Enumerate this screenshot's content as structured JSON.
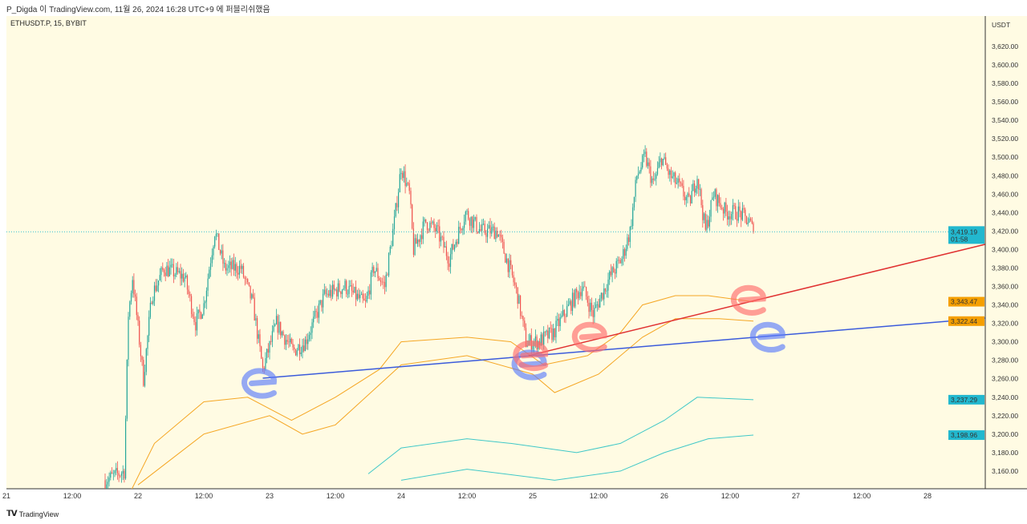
{
  "header": {
    "publish_info": "P_Digda 이 TradingView.com, 11월 26, 2024 16:28 UTC+9 에 퍼블리쉬했음"
  },
  "symbol_info": "ETHUSDT.P, 15, BYBIT",
  "currency": "USDT",
  "footer": {
    "logo_text": "TradingView"
  },
  "colors": {
    "background": "#fffbe3",
    "up": "#26a69a",
    "down": "#ef5350",
    "band_outer": "#f5a623",
    "band_inner": "#3fc8c8",
    "trend_blue": "#3b5bdb",
    "trend_red": "#e03131",
    "last_price": "#22b8cf"
  },
  "chart_data": {
    "type": "candlestick",
    "interval": "15",
    "ylim": [
      3150,
      3630
    ],
    "price_ticks": [
      3160,
      3180,
      3200,
      3220,
      3240,
      3260,
      3280,
      3300,
      3320,
      3340,
      3360,
      3380,
      3400,
      3420,
      3440,
      3460,
      3480,
      3500,
      3520,
      3540,
      3560,
      3580,
      3600,
      3620
    ],
    "price_tick_labels": [
      "3,160.00",
      "3,180.00",
      "3,200.00",
      "3,220.00",
      "3,240.00",
      "3,260.00",
      "3,280.00",
      "3,300.00",
      "3,320.00",
      "3,340.00",
      "3,360.00",
      "3,380.00",
      "3,400.00",
      "3,420.00",
      "3,440.00",
      "3,460.00",
      "3,480.00",
      "3,500.00",
      "3,520.00",
      "3,540.00",
      "3,560.00",
      "3,580.00",
      "3,600.00",
      "3,620.00"
    ],
    "time_ticks": [
      {
        "t": "2024-11-21 00:00",
        "label": "21"
      },
      {
        "t": "2024-11-21 12:00",
        "label": "12:00"
      },
      {
        "t": "2024-11-22 00:00",
        "label": "22"
      },
      {
        "t": "2024-11-22 12:00",
        "label": "12:00"
      },
      {
        "t": "2024-11-23 00:00",
        "label": "23"
      },
      {
        "t": "2024-11-23 12:00",
        "label": "12:00"
      },
      {
        "t": "2024-11-24 00:00",
        "label": "24"
      },
      {
        "t": "2024-11-24 12:00",
        "label": "12:00"
      },
      {
        "t": "2024-11-25 00:00",
        "label": "25"
      },
      {
        "t": "2024-11-25 12:00",
        "label": "12:00"
      },
      {
        "t": "2024-11-26 00:00",
        "label": "26"
      },
      {
        "t": "2024-11-26 12:00",
        "label": "12:00"
      },
      {
        "t": "2024-11-27 00:00",
        "label": "27"
      },
      {
        "t": "2024-11-27 12:00",
        "label": "12:00"
      },
      {
        "t": "2024-11-28 00:00",
        "label": "28"
      }
    ],
    "price_path": [
      [
        "2024-11-21 18:00",
        3150
      ],
      [
        "2024-11-21 21:30",
        3160
      ],
      [
        "2024-11-21 22:15",
        3330
      ],
      [
        "2024-11-21 23:00",
        3370
      ],
      [
        "2024-11-22 01:00",
        3260
      ],
      [
        "2024-11-22 02:30",
        3350
      ],
      [
        "2024-11-22 04:45",
        3380
      ],
      [
        "2024-11-22 08:30",
        3370
      ],
      [
        "2024-11-22 10:30",
        3320
      ],
      [
        "2024-11-22 12:00",
        3340
      ],
      [
        "2024-11-22 14:00",
        3420
      ],
      [
        "2024-11-22 15:45",
        3380
      ],
      [
        "2024-11-22 18:45",
        3380
      ],
      [
        "2024-11-22 21:00",
        3340
      ],
      [
        "2024-11-22 22:45",
        3270
      ],
      [
        "2024-11-23 01:15",
        3320
      ],
      [
        "2024-11-23 04:15",
        3290
      ],
      [
        "2024-11-23 06:30",
        3300
      ],
      [
        "2024-11-23 10:00",
        3350
      ],
      [
        "2024-11-23 13:45",
        3360
      ],
      [
        "2024-11-23 17:30",
        3340
      ],
      [
        "2024-11-23 19:00",
        3380
      ],
      [
        "2024-11-23 21:00",
        3360
      ],
      [
        "2024-11-23 22:45",
        3430
      ],
      [
        "2024-11-24 00:00",
        3490
      ],
      [
        "2024-11-24 01:30",
        3460
      ],
      [
        "2024-11-24 02:15",
        3400
      ],
      [
        "2024-11-24 04:30",
        3430
      ],
      [
        "2024-11-24 06:30",
        3420
      ],
      [
        "2024-11-24 08:45",
        3390
      ],
      [
        "2024-11-24 11:45",
        3440
      ],
      [
        "2024-11-24 14:30",
        3420
      ],
      [
        "2024-11-24 17:30",
        3420
      ],
      [
        "2024-11-24 19:45",
        3380
      ],
      [
        "2024-11-24 21:15",
        3350
      ],
      [
        "2024-11-24 22:45",
        3300
      ],
      [
        "2024-11-25 01:00",
        3300
      ],
      [
        "2024-11-25 03:45",
        3310
      ],
      [
        "2024-11-25 06:45",
        3340
      ],
      [
        "2024-11-25 09:00",
        3360
      ],
      [
        "2024-11-25 11:00",
        3330
      ],
      [
        "2024-11-25 14:00",
        3370
      ],
      [
        "2024-11-25 16:15",
        3390
      ],
      [
        "2024-11-25 17:45",
        3420
      ],
      [
        "2024-11-25 19:00",
        3480
      ],
      [
        "2024-11-25 20:30",
        3500
      ],
      [
        "2024-11-25 22:00",
        3470
      ],
      [
        "2024-11-25 23:30",
        3500
      ],
      [
        "2024-11-26 01:00",
        3480
      ],
      [
        "2024-11-26 02:30",
        3470
      ],
      [
        "2024-11-26 04:30",
        3450
      ],
      [
        "2024-11-26 06:00",
        3480
      ],
      [
        "2024-11-26 07:30",
        3420
      ],
      [
        "2024-11-26 09:00",
        3460
      ],
      [
        "2024-11-26 11:15",
        3440
      ],
      [
        "2024-11-26 13:30",
        3440
      ],
      [
        "2024-11-26 15:30",
        3430
      ],
      [
        "2024-11-26 16:15",
        3419.19
      ]
    ],
    "bands": [
      {
        "role": "outer-upper",
        "color": "#f5a623",
        "points": [
          [
            "2024-11-21 22:00",
            3130
          ],
          [
            "2024-11-22 03:00",
            3190
          ],
          [
            "2024-11-22 12:00",
            3235
          ],
          [
            "2024-11-22 20:00",
            3240
          ],
          [
            "2024-11-23 04:00",
            3215
          ],
          [
            "2024-11-23 12:00",
            3240
          ],
          [
            "2024-11-23 20:00",
            3270
          ],
          [
            "2024-11-24 00:00",
            3300
          ],
          [
            "2024-11-24 12:00",
            3305
          ],
          [
            "2024-11-24 20:00",
            3300
          ],
          [
            "2024-11-25 02:00",
            3275
          ],
          [
            "2024-11-25 10:00",
            3285
          ],
          [
            "2024-11-25 16:00",
            3310
          ],
          [
            "2024-11-25 20:00",
            3340
          ],
          [
            "2024-11-26 02:00",
            3350
          ],
          [
            "2024-11-26 08:00",
            3350
          ],
          [
            "2024-11-26 16:15",
            3343.47
          ]
        ]
      },
      {
        "role": "outer-lower",
        "color": "#f5a623",
        "points": [
          [
            "2024-11-22 00:00",
            3145
          ],
          [
            "2024-11-22 12:00",
            3200
          ],
          [
            "2024-11-23 00:00",
            3220
          ],
          [
            "2024-11-23 06:00",
            3200
          ],
          [
            "2024-11-23 12:00",
            3210
          ],
          [
            "2024-11-24 00:00",
            3275
          ],
          [
            "2024-11-24 12:00",
            3285
          ],
          [
            "2024-11-25 00:00",
            3265
          ],
          [
            "2024-11-25 04:00",
            3245
          ],
          [
            "2024-11-25 12:00",
            3265
          ],
          [
            "2024-11-25 20:00",
            3305
          ],
          [
            "2024-11-26 02:00",
            3325
          ],
          [
            "2024-11-26 10:00",
            3325
          ],
          [
            "2024-11-26 16:15",
            3322.44
          ]
        ]
      },
      {
        "role": "inner-upper",
        "color": "#3fc8c8",
        "points": [
          [
            "2024-11-23 18:00",
            3157
          ],
          [
            "2024-11-24 00:00",
            3185
          ],
          [
            "2024-11-24 12:00",
            3195
          ],
          [
            "2024-11-24 20:00",
            3190
          ],
          [
            "2024-11-25 08:00",
            3180
          ],
          [
            "2024-11-25 16:00",
            3190
          ],
          [
            "2024-11-26 00:00",
            3215
          ],
          [
            "2024-11-26 06:00",
            3240
          ],
          [
            "2024-11-26 16:15",
            3237.29
          ]
        ]
      },
      {
        "role": "inner-lower",
        "color": "#3fc8c8",
        "points": [
          [
            "2024-11-24 00:00",
            3150
          ],
          [
            "2024-11-24 12:00",
            3162
          ],
          [
            "2024-11-25 04:00",
            3150
          ],
          [
            "2024-11-25 16:00",
            3160
          ],
          [
            "2024-11-26 00:00",
            3180
          ],
          [
            "2024-11-26 08:00",
            3195
          ],
          [
            "2024-11-26 16:15",
            3198.96
          ]
        ]
      }
    ],
    "trendlines": [
      {
        "color": "#3b5bdb",
        "from": [
          "2024-11-22 22:45",
          3260.6
        ],
        "to": [
          "2024-11-28 10:30",
          3325.7
        ]
      },
      {
        "color": "#e03131",
        "from": [
          "2024-11-24 23:15",
          3285
        ],
        "to": [
          "2024-11-28 10:30",
          3405.6
        ]
      }
    ],
    "drawn_marks": [
      {
        "color": "#5c7cfa",
        "at": [
          "2024-11-22 22:45",
          3255
        ]
      },
      {
        "color": "#5c7cfa",
        "at": [
          "2024-11-25 00:00",
          3275
        ]
      },
      {
        "color": "#5c7cfa",
        "at": [
          "2024-11-26 19:30",
          3305
        ]
      },
      {
        "color": "#ff6b6b",
        "at": [
          "2024-11-25 00:15",
          3285
        ]
      },
      {
        "color": "#ff6b6b",
        "at": [
          "2024-11-25 11:00",
          3305
        ]
      },
      {
        "color": "#ff6b6b",
        "at": [
          "2024-11-26 16:00",
          3345
        ]
      }
    ],
    "last_price": {
      "value": 3419.19,
      "label": "3,419.19",
      "countdown": "01:58"
    },
    "axis_badges": [
      {
        "label": "3,343.47",
        "color": "#f59f00",
        "value": 3343.47
      },
      {
        "label": "3,322.44",
        "color": "#f59f00",
        "value": 3322.44
      },
      {
        "label": "3,237.29",
        "color": "#22b8cf",
        "value": 3237.29
      },
      {
        "label": "3,198.96",
        "color": "#22b8cf",
        "value": 3198.96
      }
    ]
  }
}
